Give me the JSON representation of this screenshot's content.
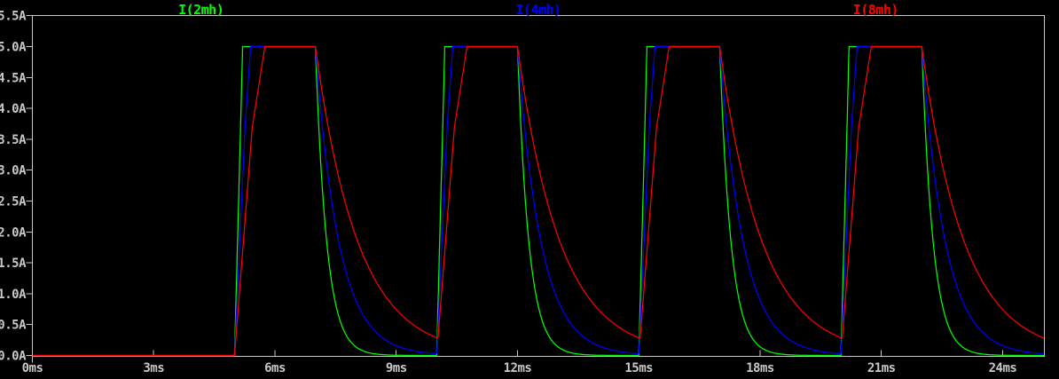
{
  "app": {
    "name": "waveform-viewer",
    "background_color": "#000000"
  },
  "chart_data": {
    "type": "line",
    "title": "",
    "grid": false,
    "legend_position": "top",
    "axis_color": "#c8c8c8",
    "x": {
      "unit": "ms",
      "min": 0,
      "max": 25,
      "ticks": [
        0,
        3,
        6,
        9,
        12,
        15,
        18,
        21,
        24
      ],
      "tick_labels": [
        "0ms",
        "3ms",
        "6ms",
        "9ms",
        "12ms",
        "15ms",
        "18ms",
        "21ms",
        "24ms"
      ]
    },
    "y": {
      "unit": "A",
      "min": 0,
      "max": 5.5,
      "tick_step": 0.5,
      "ticks": [
        0,
        0.5,
        1.0,
        1.5,
        2.0,
        2.5,
        3.0,
        3.5,
        4.0,
        4.5,
        5.0,
        5.5
      ],
      "tick_labels": [
        "0.0A",
        "0.5A",
        "1.0A",
        "1.5A",
        "2.0A",
        "2.5A",
        "3.0A",
        "3.5A",
        "4.0A",
        "4.5A",
        "5.0A",
        "5.5A"
      ]
    },
    "pulse_train": {
      "first_pulse_start_ms": 5,
      "period_ms": 5,
      "on_time_ms": 2,
      "num_pulses": 4,
      "amplitude_A": 5
    },
    "series": [
      {
        "name": "I(2mh)",
        "color": "#00ff00",
        "peak_A": 5.0,
        "rise_profile": [
          [
            0,
            0
          ],
          [
            0.15,
            3.7
          ],
          [
            0.2,
            5
          ]
        ],
        "decay_tau_ms": 0.28,
        "residual_at_next_pulse_A": 0.0
      },
      {
        "name": "I(4mh)",
        "color": "#0000ff",
        "peak_A": 5.0,
        "rise_profile": [
          [
            0,
            0
          ],
          [
            0.26,
            3.7
          ],
          [
            0.4,
            5
          ]
        ],
        "decay_tau_ms": 0.58,
        "residual_at_next_pulse_A": 0.03
      },
      {
        "name": "I(8mh)",
        "color": "#ff0000",
        "peak_A": 5.0,
        "rise_profile": [
          [
            0,
            0
          ],
          [
            0.44,
            3.7
          ],
          [
            0.75,
            5
          ]
        ],
        "decay_tau_ms": 1.05,
        "residual_at_next_pulse_A": 0.29
      }
    ]
  }
}
